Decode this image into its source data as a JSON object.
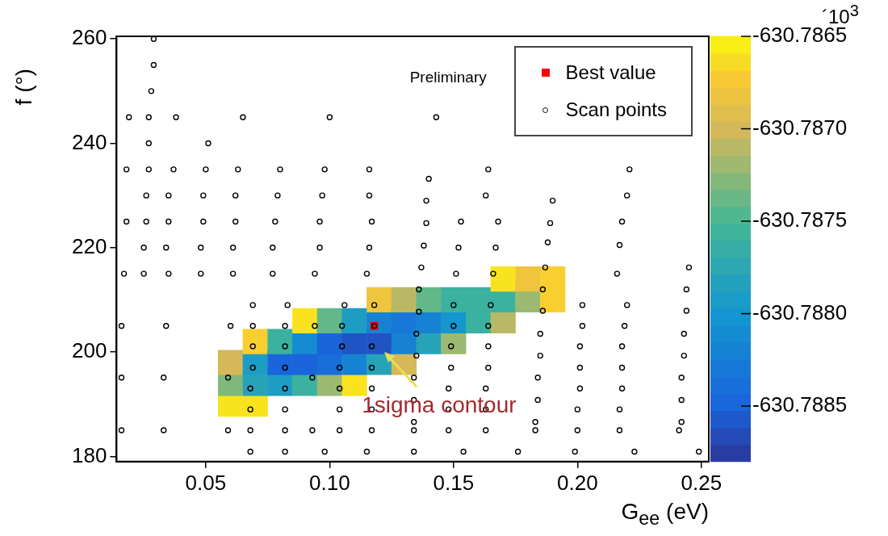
{
  "chart_data": {
    "type": "scatter",
    "xlabel": "G$_{ee}$ (eV)",
    "ylabel": "f (°)",
    "clabel": "´10$^{3}$",
    "legend": "top right",
    "annotations": [
      "Preliminary",
      {
        "text": "1sigma contour",
        "x": 0.122,
        "y": 200
      }
    ],
    "xlim": [
      0.014,
      0.253
    ],
    "ylim": [
      179,
      260.5
    ],
    "xticks": [
      0.05,
      {
        "value": 0.1,
        "label": "0.10"
      },
      0.15,
      {
        "value": 0.2,
        "label": "0.20"
      },
      0.25
    ],
    "yticks": [
      180,
      200,
      220,
      240,
      260
    ],
    "clim": [
      -630.7888,
      -630.7865
    ],
    "cticks": [
      -630.7865,
      {
        "value": -630.787,
        "label": "-630.7870"
      },
      -630.7875,
      {
        "value": -630.788,
        "label": "-630.7880"
      },
      -630.7885
    ],
    "series": [
      {
        "type": "scatter",
        "marker": "square",
        "x": [
          0.06,
          0.06,
          0.06,
          0.07,
          0.07,
          0.07,
          0.07,
          0.08,
          0.08,
          0.08,
          0.09,
          0.09,
          0.09,
          0.09,
          0.1,
          0.1,
          0.1,
          0.1,
          0.11,
          0.11,
          0.11,
          0.11,
          0.12,
          0.12,
          0.12,
          0.12,
          0.13,
          0.13,
          0.13,
          0.13,
          0.14,
          0.14,
          0.14,
          0.15,
          0.15,
          0.15,
          0.16,
          0.16,
          0.17,
          0.17,
          0.17,
          0.18,
          0.18,
          0.19,
          0.19
        ],
        "values": [
          190,
          194,
          198,
          190,
          194,
          198,
          202,
          194,
          198,
          202,
          194,
          198,
          202,
          206,
          194,
          198,
          202,
          206,
          194,
          198,
          202,
          206,
          198,
          202,
          206,
          210,
          198,
          202,
          206,
          210,
          202,
          206,
          210,
          202,
          206,
          210,
          206,
          210,
          206,
          210,
          214,
          210,
          214,
          210,
          214
        ],
        "colors": [
          "#f9e31e",
          "#7fb97c",
          "#d5b959",
          "#f9e31e",
          "#27a3b8",
          "#1e9cc4",
          "#f8cf2e",
          "#1e9cc4",
          "#1a64dc",
          "#3bb1a0",
          "#3bb1a0",
          "#1a64dc",
          "#158bd2",
          "#f9e31e",
          "#9cb971",
          "#196ed9",
          "#1a64dc",
          "#62b888",
          "#f9e31e",
          "#1682d4",
          "#2057c5",
          "#1e9cc4",
          "#27a3b8",
          "#2057c5",
          "#1682d4",
          "#efc33e",
          "#d5b959",
          "#1682d4",
          "#1878d7",
          "#b9b965",
          "#27a3b8",
          "#1682d4",
          "#62b888",
          "#9cb971",
          "#1496cf",
          "#3bb1a0",
          "#3bb1a0",
          "#3bb1a0",
          "#b9b965",
          "#3bb1a0",
          "#f9e31e",
          "#9cb971",
          "#efc33e",
          "#f8cf2e",
          "#f8cf2e"
        ],
        "cvalues": [
          -630.7866,
          -630.7873,
          -630.787,
          -630.7866,
          -630.7878,
          -630.7879,
          -630.7867,
          -630.7879,
          -630.7885,
          -630.7876,
          -630.7876,
          -630.7885,
          -630.7881,
          -630.7866,
          -630.7872,
          -630.7884,
          -630.7885,
          -630.7874,
          -630.7866,
          -630.7882,
          -630.7886,
          -630.7879,
          -630.7878,
          -630.7886,
          -630.7882,
          -630.7868,
          -630.787,
          -630.7882,
          -630.7883,
          -630.7871,
          -630.7878,
          -630.7882,
          -630.7874,
          -630.7872,
          -630.788,
          -630.7876,
          -630.7876,
          -630.7876,
          -630.7871,
          -630.7876,
          -630.7866,
          -630.7872,
          -630.7868,
          -630.7867,
          -630.7867
        ]
      },
      {
        "type": "scatter",
        "name": "Best value",
        "color": "#ff0000",
        "marker": "square",
        "x": [
          0.118
        ],
        "values": [
          205
        ]
      },
      {
        "type": "scatter",
        "name": "Scan points",
        "color": "#000000",
        "marker": "circle",
        "x": [
          0.029,
          0.029,
          0.028,
          0.019,
          0.027,
          0.038,
          0.065,
          0.1,
          0.143,
          0.027,
          0.051,
          0.018,
          0.027,
          0.037,
          0.05,
          0.063,
          0.08,
          0.098,
          0.116,
          0.164,
          0.221,
          0.14,
          0.026,
          0.035,
          0.049,
          0.062,
          0.079,
          0.097,
          0.116,
          0.163,
          0.22,
          0.139,
          0.19,
          0.018,
          0.026,
          0.035,
          0.049,
          0.062,
          0.078,
          0.096,
          0.117,
          0.153,
          0.168,
          0.218,
          0.139,
          0.189,
          0.188,
          0.217,
          0.025,
          0.034,
          0.048,
          0.061,
          0.077,
          0.096,
          0.116,
          0.152,
          0.167,
          0.138,
          0.137,
          0.187,
          0.245,
          0.017,
          0.025,
          0.035,
          0.048,
          0.061,
          0.077,
          0.094,
          0.115,
          0.151,
          0.166,
          0.216,
          0.136,
          0.186,
          0.244,
          0.069,
          0.083,
          0.106,
          0.118,
          0.15,
          0.165,
          0.202,
          0.22,
          0.186,
          0.244,
          0.136,
          0.016,
          0.034,
          0.06,
          0.069,
          0.082,
          0.094,
          0.105,
          0.118,
          0.15,
          0.164,
          0.202,
          0.219,
          0.135,
          0.185,
          0.243,
          0.069,
          0.082,
          0.105,
          0.117,
          0.149,
          0.164,
          0.201,
          0.218,
          0.135,
          0.185,
          0.243,
          0.069,
          0.082,
          0.104,
          0.117,
          0.149,
          0.164,
          0.201,
          0.218,
          0.016,
          0.033,
          0.059,
          0.093,
          0.134,
          0.184,
          0.242,
          0.068,
          0.082,
          0.104,
          0.117,
          0.148,
          0.163,
          0.201,
          0.218,
          0.134,
          0.184,
          0.242,
          0.068,
          0.082,
          0.104,
          0.117,
          0.148,
          0.163,
          0.2,
          0.217,
          0.134,
          0.183,
          0.242,
          0.016,
          0.033,
          0.059,
          0.068,
          0.082,
          0.093,
          0.104,
          0.117,
          0.134,
          0.148,
          0.163,
          0.183,
          0.2,
          0.217,
          0.241,
          0.068,
          0.082,
          0.098,
          0.115,
          0.134,
          0.154,
          0.176,
          0.199,
          0.223,
          0.249
        ],
        "values": [
          260,
          255,
          250,
          245,
          245,
          245,
          245,
          245,
          245,
          240,
          240,
          235,
          235,
          235,
          235,
          235,
          235,
          235,
          235,
          235,
          235,
          233.2,
          230,
          230,
          230,
          230,
          230,
          230,
          230,
          230,
          230,
          229,
          229,
          225,
          225,
          225,
          225,
          225,
          225,
          225,
          225,
          225,
          225,
          225,
          224.7,
          224.7,
          221,
          220.5,
          220,
          220,
          220,
          220,
          220,
          220,
          220,
          220,
          220,
          220.4,
          216.2,
          216.2,
          216.2,
          215,
          215,
          215,
          215,
          215,
          215,
          215,
          215,
          215,
          215,
          215,
          212,
          212,
          212,
          209,
          209,
          209,
          209,
          209,
          209,
          209,
          209,
          207.9,
          207.9,
          207.7,
          205,
          205,
          205,
          205,
          205,
          205,
          205,
          205,
          205,
          205,
          205,
          205,
          203.5,
          203.5,
          203.5,
          201.1,
          201.1,
          201.1,
          201.1,
          201.1,
          201.1,
          201.1,
          201.1,
          199.3,
          199.3,
          199.3,
          197,
          197,
          197,
          197,
          197,
          197,
          197,
          197,
          195.1,
          195.1,
          195.1,
          195.1,
          195.1,
          195.1,
          195.1,
          193,
          193,
          193,
          193,
          193,
          193,
          193,
          193,
          190.8,
          190.8,
          190.8,
          189,
          189,
          189,
          189,
          189,
          189,
          189,
          189,
          186.6,
          186.6,
          186.6,
          185,
          185,
          185,
          185,
          185,
          185,
          185,
          185,
          185,
          185,
          185,
          185,
          185,
          185,
          185,
          180.9,
          180.9,
          180.9,
          180.9,
          180.9,
          180.9,
          180.9,
          180.9,
          180.9,
          180.9
        ]
      }
    ]
  }
}
